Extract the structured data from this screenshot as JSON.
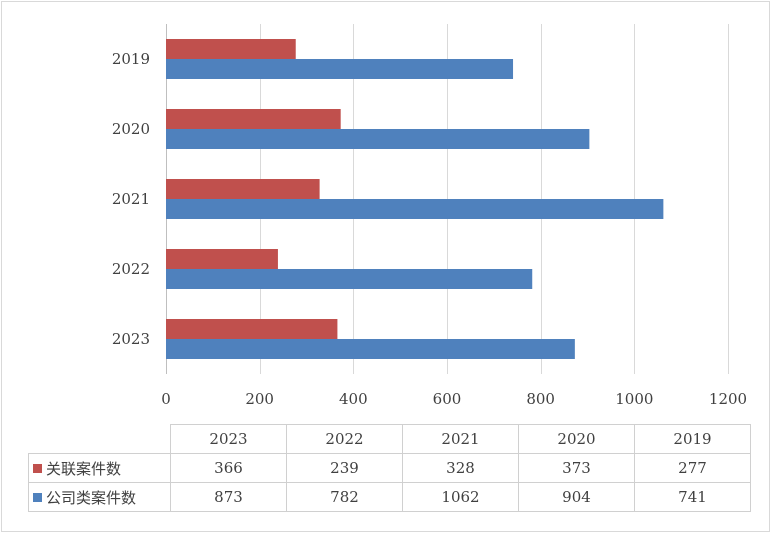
{
  "chart_data": {
    "type": "bar",
    "orientation": "horizontal",
    "categories": [
      "2019",
      "2020",
      "2021",
      "2022",
      "2023"
    ],
    "series": [
      {
        "name": "关联案件数",
        "color": "#c0504d",
        "values": [
          277,
          373,
          328,
          239,
          366
        ]
      },
      {
        "name": "公司类案件数",
        "color": "#4f81bd",
        "values": [
          741,
          904,
          1062,
          782,
          873
        ]
      }
    ],
    "xlim": [
      0,
      1200
    ],
    "xticks": [
      0,
      200,
      400,
      600,
      800,
      1000,
      1200
    ],
    "grid": true,
    "legend": "data-table"
  },
  "table": {
    "columns": [
      "2023",
      "2022",
      "2021",
      "2020",
      "2019"
    ],
    "rows": [
      {
        "label": "关联案件数",
        "color": "#c0504d",
        "values": [
          "366",
          "239",
          "328",
          "373",
          "277"
        ]
      },
      {
        "label": "公司类案件数",
        "color": "#4f81bd",
        "values": [
          "873",
          "782",
          "1062",
          "904",
          "741"
        ]
      }
    ]
  }
}
